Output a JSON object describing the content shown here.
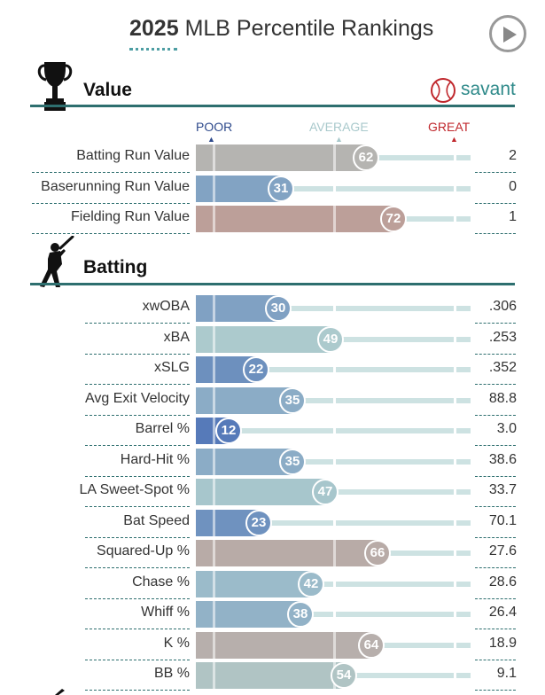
{
  "header": {
    "year": "2025",
    "title": "MLB Percentile Rankings"
  },
  "brand": "savant",
  "scale": {
    "poor": "POOR",
    "average": "AVERAGE",
    "great": "GREAT",
    "poor_color": "#2e4a8c",
    "average_color": "#a9c9cc",
    "great_color": "#c0282d"
  },
  "sections": {
    "value": {
      "title": "Value",
      "rows": [
        {
          "label": "Batting Run Value",
          "percentile": 62,
          "value": "2"
        },
        {
          "label": "Baserunning Run Value",
          "percentile": 31,
          "value": "0"
        },
        {
          "label": "Fielding Run Value",
          "percentile": 72,
          "value": "1"
        }
      ]
    },
    "batting": {
      "title": "Batting",
      "rows": [
        {
          "label": "xwOBA",
          "percentile": 30,
          "value": ".306"
        },
        {
          "label": "xBA",
          "percentile": 49,
          "value": ".253"
        },
        {
          "label": "xSLG",
          "percentile": 22,
          "value": ".352"
        },
        {
          "label": "Avg Exit Velocity",
          "percentile": 35,
          "value": "88.8"
        },
        {
          "label": "Barrel %",
          "percentile": 12,
          "value": "3.0"
        },
        {
          "label": "Hard-Hit %",
          "percentile": 35,
          "value": "38.6"
        },
        {
          "label": "LA Sweet-Spot %",
          "percentile": 47,
          "value": "33.7"
        },
        {
          "label": "Bat Speed",
          "percentile": 23,
          "value": "70.1"
        },
        {
          "label": "Squared-Up %",
          "percentile": 66,
          "value": "27.6"
        },
        {
          "label": "Chase %",
          "percentile": 42,
          "value": "28.6"
        },
        {
          "label": "Whiff %",
          "percentile": 38,
          "value": "26.4"
        },
        {
          "label": "K %",
          "percentile": 64,
          "value": "18.9"
        },
        {
          "label": "BB %",
          "percentile": 54,
          "value": "9.1"
        }
      ]
    }
  },
  "icons": {
    "play": "play-icon",
    "trophy": "trophy-icon",
    "batter": "batter-icon",
    "baseball": "baseball-icon"
  }
}
